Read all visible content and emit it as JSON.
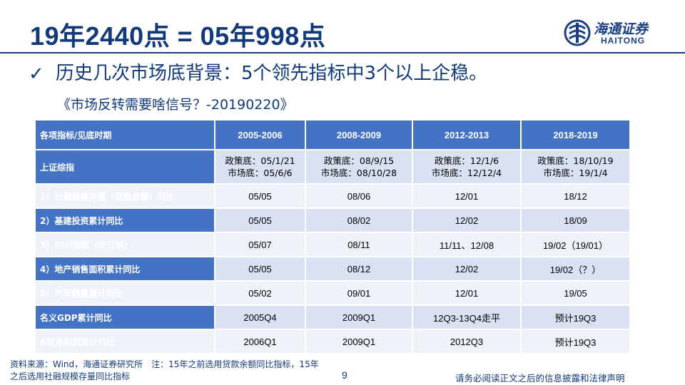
{
  "title": "19年2440点 = 05年998点",
  "logo": {
    "cn": "海通证券",
    "en": "HAITONG"
  },
  "headline": {
    "bullet_icon": "check-mark-icon",
    "text": "历史几次市场底背景：5个领先指标中3个以上企稳。"
  },
  "subline": "《市场反转需要啥信号？-20190220》",
  "table": {
    "header": [
      "各项指标/见底时期",
      "2005-2006",
      "2008-2009",
      "2012-2013",
      "2018-2019"
    ],
    "rows": [
      {
        "label": "上证综指",
        "cells": [
          [
            "政策底：05/1/21",
            "市场底：05/6/6"
          ],
          [
            "政策底：08/9/15",
            "市场底：08/10/28"
          ],
          [
            "政策底：12/1/6",
            "市场底：12/12/4"
          ],
          [
            "政策底：18/10/19",
            "市场底：19/1/4"
          ]
        ]
      },
      {
        "label": "1）社融规模存量（贷款余额）同比",
        "cells": [
          "05/05",
          "08/06",
          "12/01",
          "18/12"
        ]
      },
      {
        "label": "2）基建投资累计同比",
        "cells": [
          "05/05",
          "08/02",
          "12/02",
          "18/09"
        ]
      },
      {
        "label": "3）PMI指数（新订单）",
        "cells": [
          "05/07",
          "08/11",
          "11/11、12/08",
          "19/02（19/01）"
        ]
      },
      {
        "label": "4）地产销售面积累计同比",
        "cells": [
          "05/05",
          "08/12",
          "12/02",
          "19/02（？）"
        ]
      },
      {
        "label": "5）汽车销量累计同比",
        "cells": [
          "05/02",
          "09/01",
          "12/01",
          "19/05"
        ]
      },
      {
        "label": "名义GDP累计同比",
        "cells": [
          "2005Q4",
          "2009Q1",
          "12Q3-13Q4走平",
          "预计19Q3"
        ]
      },
      {
        "label": "A股净利润累计同比",
        "cells": [
          "2006Q1",
          "2009Q1",
          "2012Q3",
          "预计19Q3"
        ]
      }
    ]
  },
  "footer": {
    "source": "资料来源：Wind，海通证券研究所　注：15年之前选用贷款余额同比指标，15年之后选用社融规模存量同比指标",
    "page": "9",
    "disclaimer": "请务必阅读正文之后的信息披露和法律声明"
  }
}
